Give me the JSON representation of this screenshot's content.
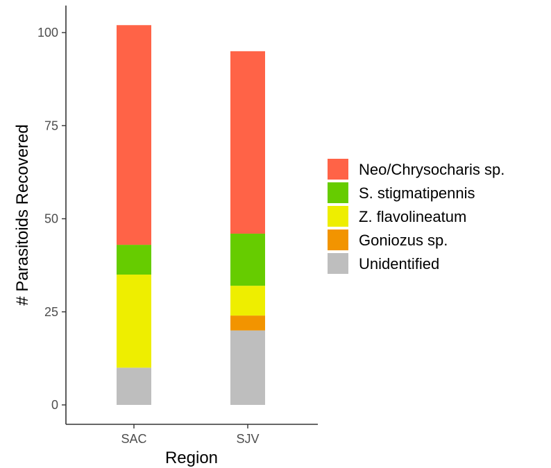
{
  "chart_data": {
    "type": "bar",
    "stacked": true,
    "title": "",
    "xlabel": "Region",
    "ylabel": "# Parasitoids Recovered",
    "categories": [
      "SAC",
      "SJV"
    ],
    "ylim": [
      0,
      105
    ],
    "yticks": [
      0,
      25,
      50,
      75,
      100
    ],
    "grid": false,
    "legend_position": "right",
    "series": [
      {
        "name": "Unidentified",
        "color": "#bebebe",
        "values": [
          10,
          20
        ]
      },
      {
        "name": "Goniozus sp.",
        "color": "#f29400",
        "values": [
          0,
          4
        ]
      },
      {
        "name": "Z. flavolineatum",
        "color": "#eeee00",
        "values": [
          25,
          8
        ]
      },
      {
        "name": "S. stigmatipennis",
        "color": "#66cc00",
        "values": [
          8,
          14
        ]
      },
      {
        "name": "Neo/Chrysocharis sp.",
        "color": "#ff6347",
        "values": [
          59,
          49
        ]
      }
    ],
    "legend_order": [
      "Neo/Chrysocharis sp.",
      "S. stigmatipennis",
      "Z. flavolineatum",
      "Goniozus sp.",
      "Unidentified"
    ]
  }
}
